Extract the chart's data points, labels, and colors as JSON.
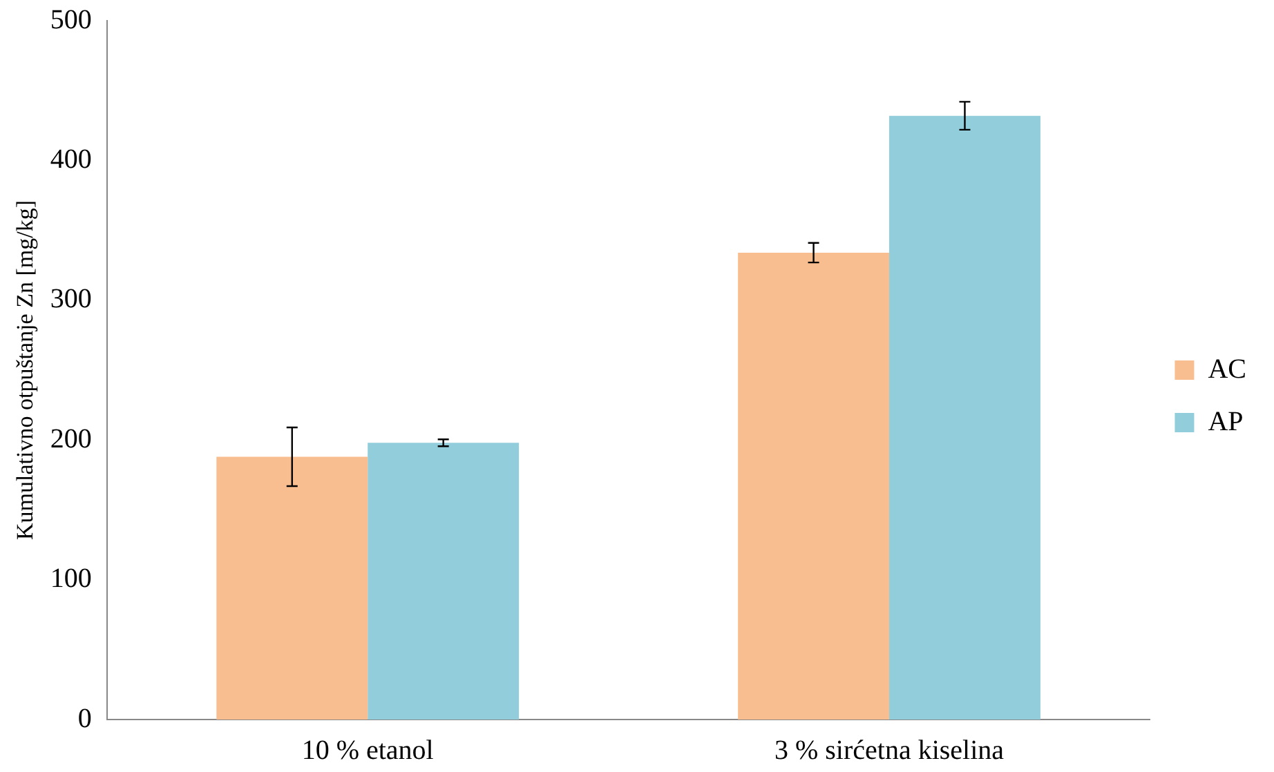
{
  "chart_data": {
    "type": "bar",
    "ylabel": "Kumulativno otpuštanje Zn [mg/kg]",
    "categories": [
      "10 % etanol",
      "3 % sirćetna kiselina"
    ],
    "series": [
      {
        "name": "AC",
        "color": "#f9be8f",
        "values": [
          188,
          334
        ],
        "errors": [
          21,
          7
        ]
      },
      {
        "name": "AP",
        "color": "#92cddc",
        "values": [
          198,
          432
        ],
        "errors": [
          2.5,
          10
        ]
      }
    ],
    "ylim": [
      0,
      500
    ],
    "yticks": [
      0,
      100,
      200,
      300,
      400,
      500
    ],
    "grid": false,
    "legend": "right"
  }
}
